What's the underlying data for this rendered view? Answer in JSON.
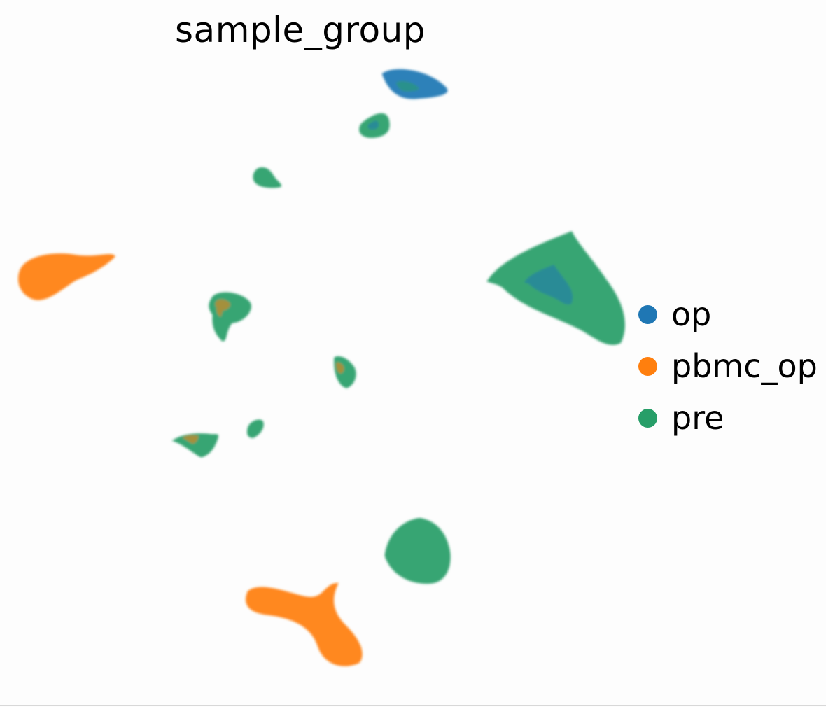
{
  "chart_data": {
    "type": "scatter",
    "title": "sample_group",
    "xlabel": "",
    "ylabel": "",
    "grid": false,
    "axes_visible": false,
    "legend_position": "right",
    "series": [
      {
        "name": "op",
        "color": "#1f77b4"
      },
      {
        "name": "pbmc_op",
        "color": "#ff7f0e"
      },
      {
        "name": "pre",
        "color": "#279e68"
      }
    ],
    "clusters": [
      {
        "dominant": "op",
        "secondary": "pre",
        "x": 5.0,
        "y": 9.3
      },
      {
        "dominant": "pre",
        "secondary": "op",
        "x": 4.3,
        "y": 8.4
      },
      {
        "dominant": "pre",
        "x": 1.7,
        "y": 7.2
      },
      {
        "dominant": "pre",
        "secondary": "op",
        "x": 8.2,
        "y": 4.6
      },
      {
        "dominant": "pbmc_op",
        "x": -2.9,
        "y": 4.9
      },
      {
        "dominant": "pre",
        "secondary": "pbmc_op",
        "x": 0.8,
        "y": 4.1
      },
      {
        "dominant": "pre",
        "secondary": "pbmc_op",
        "x": 3.5,
        "y": 2.6
      },
      {
        "dominant": "pre",
        "x": 1.5,
        "y": 1.2
      },
      {
        "dominant": "pre",
        "secondary": "pbmc_op",
        "x": 0.1,
        "y": 0.9
      },
      {
        "dominant": "pre",
        "x": 4.9,
        "y": -1.7
      },
      {
        "dominant": "pbmc_op",
        "x": 2.9,
        "y": -3.2
      }
    ]
  }
}
